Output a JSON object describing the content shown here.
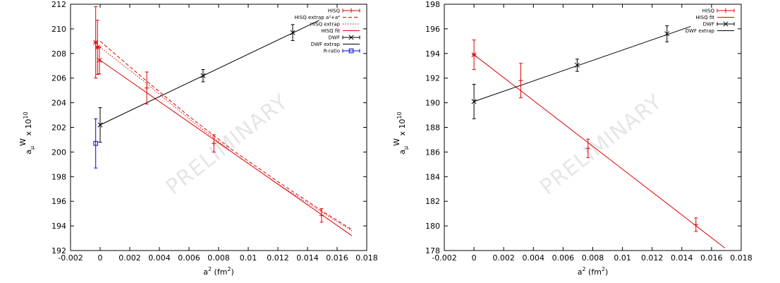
{
  "chart_data": [
    {
      "type": "scatter",
      "watermark": "PRELIMINARY",
      "xlabel_main": "a",
      "xlabel_sup": "2",
      "xlabel_rest": " (fm",
      "xlabel_sup2": "2",
      "xlabel_end": ")",
      "ylabel_main": "a",
      "ylabel_sub": "μ",
      "ylabel_sup": "W",
      "ylabel_rest": " x 10",
      "ylabel_sup2": "10",
      "xlim": [
        -0.002,
        0.018
      ],
      "ylim": [
        192,
        212
      ],
      "xticks": [
        "-0.002",
        "0",
        "0.002",
        "0.004",
        "0.006",
        "0.008",
        "0.01",
        "0.012",
        "0.014",
        "0.016",
        "0.018"
      ],
      "yticks": [
        "192",
        "194",
        "196",
        "198",
        "200",
        "202",
        "204",
        "206",
        "208",
        "210",
        "212"
      ],
      "legend": [
        {
          "label": "HISQ",
          "sym": "errbar-plus",
          "color": "#e00000"
        },
        {
          "label": "HISQ extrap a²+a⁴",
          "sym": "dashed",
          "color": "#e00000"
        },
        {
          "label": "HISQ extrap",
          "sym": "dotted",
          "color": "#e00000"
        },
        {
          "label": "HISQ fit",
          "sym": "solid",
          "color": "#e00000"
        },
        {
          "label": "DWF",
          "sym": "errbar-x",
          "color": "#000000"
        },
        {
          "label": "DWF extrap",
          "sym": "solid",
          "color": "#000000"
        },
        {
          "label": "R-ratio",
          "sym": "errbar-square",
          "color": "#0000e0"
        }
      ],
      "series": [
        {
          "name": "HISQ",
          "color": "#e00000",
          "marker": "plus",
          "points": [
            {
              "x": 0.00315,
              "y": 205.2,
              "err": 1.3
            },
            {
              "x": 0.00768,
              "y": 200.7,
              "err": 0.7
            },
            {
              "x": 0.01495,
              "y": 194.85,
              "err": 0.55
            }
          ]
        },
        {
          "name": "HISQ extrap a²+a⁴",
          "color": "#e00000",
          "marker": "star",
          "points": [
            {
              "x": -0.0003,
              "y": 208.9,
              "err": 2.9
            }
          ]
        },
        {
          "name": "HISQ extrap",
          "color": "#e00000",
          "marker": "star",
          "points": [
            {
              "x": -0.00018,
              "y": 208.5,
              "err": 2.2
            }
          ]
        },
        {
          "name": "HISQ fit",
          "color": "#e00000",
          "marker": "x",
          "points": [
            {
              "x": -5e-05,
              "y": 207.45,
              "err": 1.1
            }
          ]
        },
        {
          "name": "DWF",
          "color": "#000000",
          "marker": "x",
          "points": [
            {
              "x": 0.0,
              "y": 202.2,
              "err": 1.4
            },
            {
              "x": 0.00695,
              "y": 206.2,
              "err": 0.5
            },
            {
              "x": 0.013,
              "y": 209.7,
              "err": 0.65
            }
          ]
        },
        {
          "name": "R-ratio",
          "color": "#0000e0",
          "marker": "square",
          "points": [
            {
              "x": -0.0003,
              "y": 200.7,
              "err": 2.0
            }
          ]
        }
      ],
      "lines": [
        {
          "name": "HISQ fit",
          "color": "#e00000",
          "style": "solid",
          "points": [
            [
              0,
              207.45
            ],
            [
              0.017,
              193.2
            ]
          ]
        },
        {
          "name": "HISQ extrap",
          "color": "#e00000",
          "style": "dotted",
          "points": [
            [
              0,
              208.5
            ],
            [
              0.003,
              205.7
            ],
            [
              0.006,
              202.7
            ],
            [
              0.009,
              199.9
            ],
            [
              0.012,
              197.4
            ],
            [
              0.015,
              195.1
            ],
            [
              0.017,
              193.6
            ]
          ]
        },
        {
          "name": "HISQ extrap a²+a⁴",
          "color": "#e00000",
          "style": "dashed",
          "points": [
            [
              0,
              209.0
            ],
            [
              0.003,
              205.9
            ],
            [
              0.006,
              202.9
            ],
            [
              0.009,
              200.1
            ],
            [
              0.012,
              197.6
            ],
            [
              0.015,
              195.2
            ],
            [
              0.017,
              193.7
            ]
          ]
        },
        {
          "name": "DWF extrap",
          "color": "#000000",
          "style": "solid",
          "points": [
            [
              0,
              202.2
            ],
            [
              0.0148,
              210.7
            ]
          ]
        }
      ]
    },
    {
      "type": "scatter",
      "watermark": "PRELIMINARY",
      "xlabel_main": "a",
      "xlabel_sup": "2",
      "xlabel_rest": " (fm",
      "xlabel_sup2": "2",
      "xlabel_end": ")",
      "ylabel_main": "a",
      "ylabel_sub": "μ",
      "ylabel_sup": "W",
      "ylabel_rest": " x 10",
      "ylabel_sup2": "10",
      "xlim": [
        -0.002,
        0.018
      ],
      "ylim": [
        178,
        198
      ],
      "xticks": [
        "-0.002",
        "0",
        "0.002",
        "0.004",
        "0.006",
        "0.008",
        "0.01",
        "0.012",
        "0.014",
        "0.016",
        "0.018"
      ],
      "yticks": [
        "178",
        "180",
        "182",
        "184",
        "186",
        "188",
        "190",
        "192",
        "194",
        "196",
        "198"
      ],
      "legend": [
        {
          "label": "HISQ",
          "sym": "errbar-plus",
          "color": "#e00000"
        },
        {
          "label": "HISQ fit",
          "sym": "solid",
          "color": "#e00000"
        },
        {
          "label": "DWF",
          "sym": "errbar-x",
          "color": "#000000"
        },
        {
          "label": "DWF extrap",
          "sym": "solid",
          "color": "#000000"
        }
      ],
      "series": [
        {
          "name": "HISQ",
          "color": "#e00000",
          "marker": "plus",
          "points": [
            {
              "x": 0.00315,
              "y": 191.8,
              "err": 1.4
            },
            {
              "x": 0.00768,
              "y": 186.3,
              "err": 0.75
            },
            {
              "x": 0.01495,
              "y": 180.1,
              "err": 0.55
            }
          ]
        },
        {
          "name": "HISQ fit",
          "color": "#e00000",
          "marker": "star",
          "points": [
            {
              "x": 0.0,
              "y": 193.9,
              "err": 1.2
            }
          ]
        },
        {
          "name": "DWF",
          "color": "#000000",
          "marker": "x",
          "points": [
            {
              "x": 0.0,
              "y": 190.1,
              "err": 1.4
            },
            {
              "x": 0.00695,
              "y": 193.05,
              "err": 0.5
            },
            {
              "x": 0.013,
              "y": 195.6,
              "err": 0.65
            }
          ]
        }
      ],
      "lines": [
        {
          "name": "HISQ fit",
          "color": "#e00000",
          "style": "solid",
          "points": [
            [
              0,
              193.9
            ],
            [
              0.0169,
              178.2
            ]
          ]
        },
        {
          "name": "DWF extrap",
          "color": "#000000",
          "style": "solid",
          "points": [
            [
              0,
              190.1
            ],
            [
              0.0146,
              196.2
            ]
          ]
        }
      ]
    }
  ]
}
